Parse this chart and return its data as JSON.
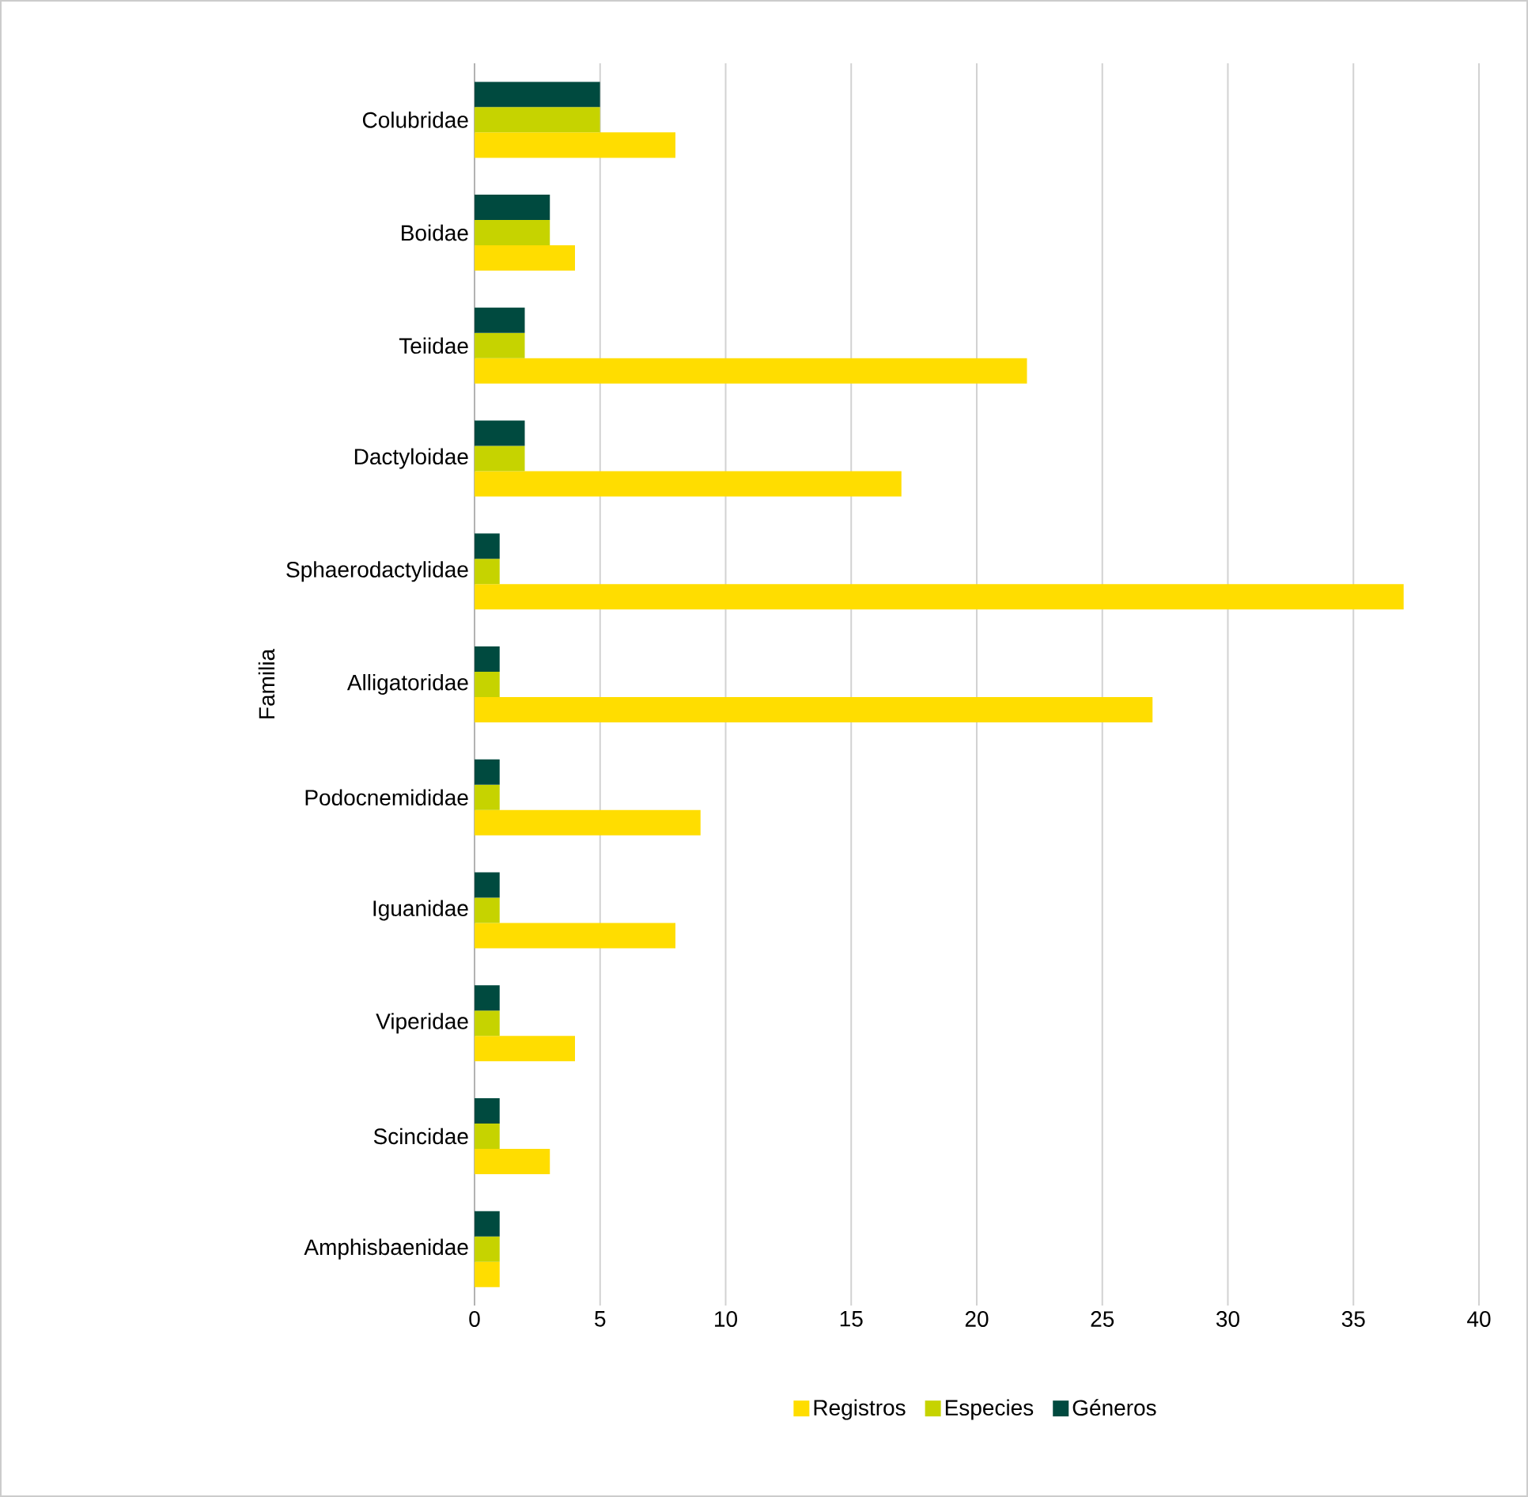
{
  "chart_data": {
    "type": "bar",
    "orientation": "horizontal",
    "ylabel": "Familia",
    "categories": [
      "Colubridae",
      "Boidae",
      "Teiidae",
      "Dactyloidae",
      "Sphaerodactylidae",
      "Alligatoridae",
      "Podocnemididae",
      "Iguanidae",
      "Viperidae",
      "Scincidae",
      "Amphisbaenidae"
    ],
    "series": [
      {
        "name": "Registros",
        "color": "#ffdd00",
        "values": [
          8,
          4,
          22,
          17,
          37,
          27,
          9,
          8,
          4,
          3,
          1
        ]
      },
      {
        "name": "Especies",
        "color": "#c6d300",
        "values": [
          5,
          3,
          2,
          2,
          1,
          1,
          1,
          1,
          1,
          1,
          1
        ]
      },
      {
        "name": "Géneros",
        "color": "#004a3f",
        "values": [
          5,
          3,
          2,
          2,
          1,
          1,
          1,
          1,
          1,
          1,
          1
        ]
      }
    ],
    "xlim": [
      0,
      40
    ],
    "xticks": [
      0,
      5,
      10,
      15,
      20,
      25,
      30,
      35,
      40
    ],
    "grid": "x",
    "legend": "bottom"
  }
}
